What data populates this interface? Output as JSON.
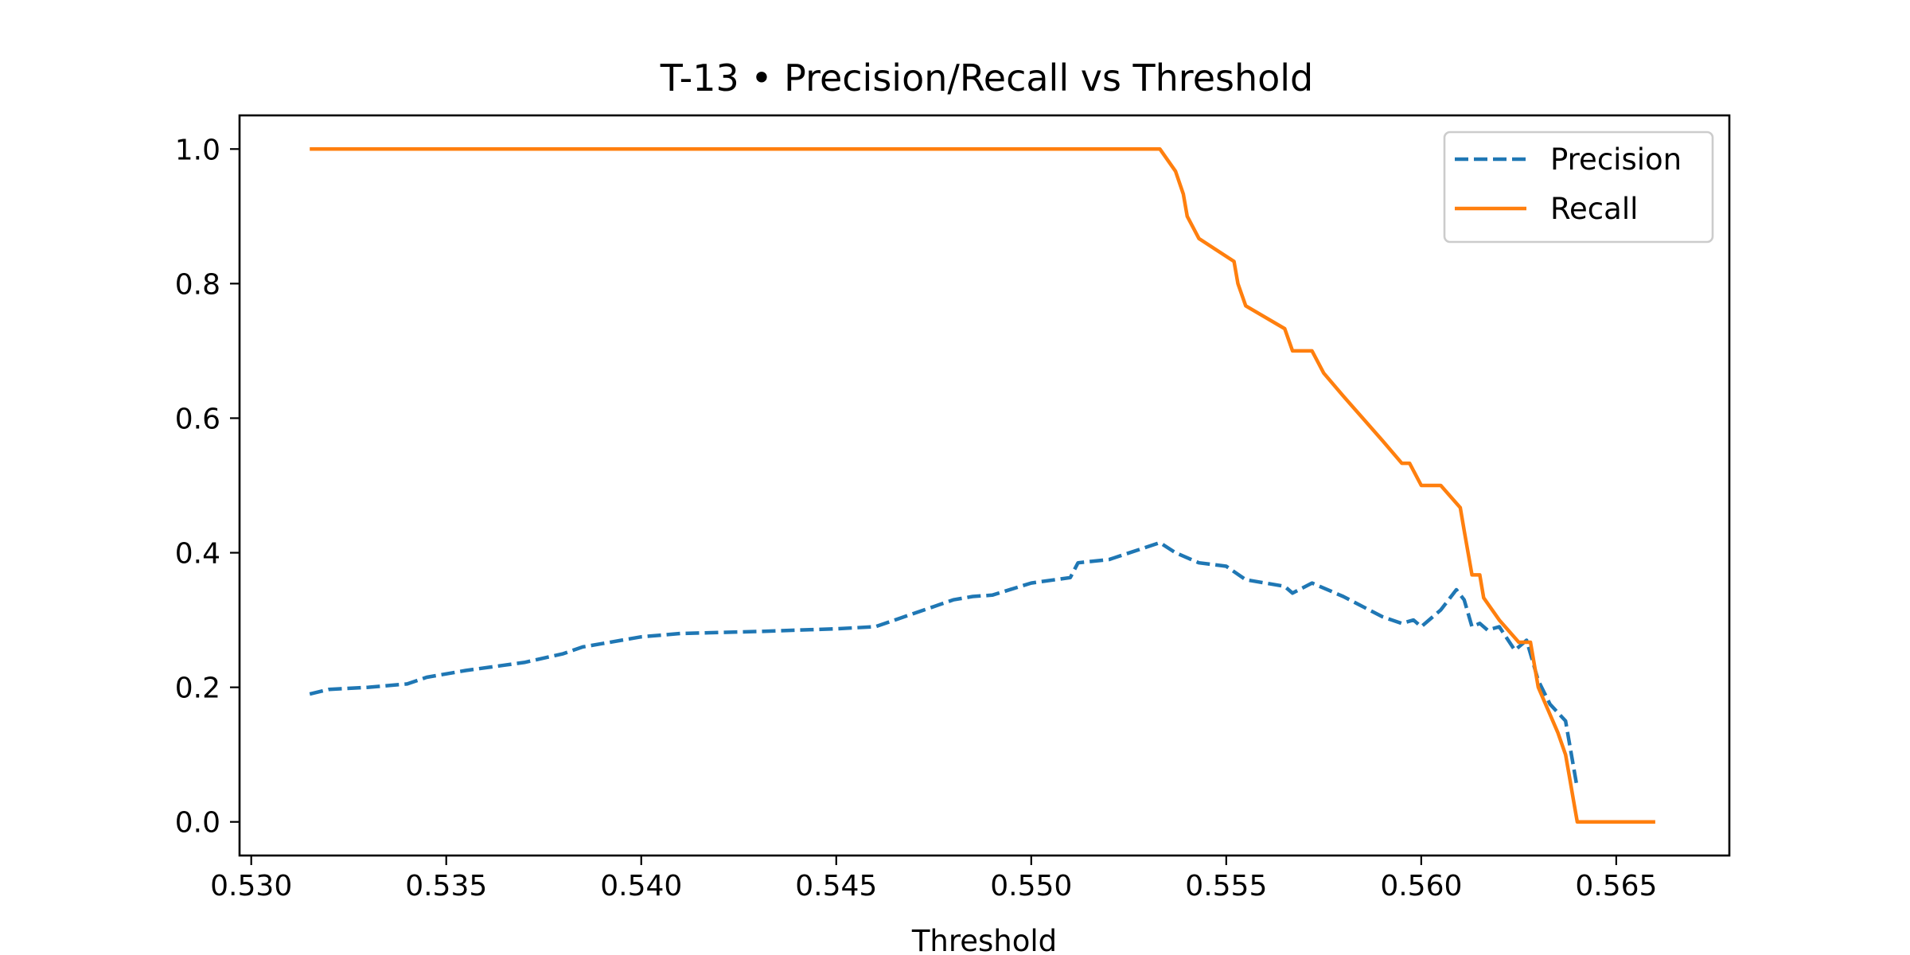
{
  "chart_data": {
    "type": "line",
    "title": "T-13 • Precision/Recall vs Threshold",
    "xlabel": "Threshold",
    "ylabel": "",
    "xlim": [
      0.5297,
      0.5679
    ],
    "ylim": [
      -0.05,
      1.05
    ],
    "xticks": [
      "0.530",
      "0.535",
      "0.540",
      "0.545",
      "0.550",
      "0.555",
      "0.560",
      "0.565"
    ],
    "xtick_values": [
      0.53,
      0.535,
      0.54,
      0.545,
      0.55,
      0.555,
      0.56,
      0.565
    ],
    "yticks": [
      "0.0",
      "0.2",
      "0.4",
      "0.6",
      "0.8",
      "1.0"
    ],
    "ytick_values": [
      0.0,
      0.2,
      0.4,
      0.6,
      0.8,
      1.0
    ],
    "grid": false,
    "legend_position": "top-right",
    "series": [
      {
        "name": "Precision",
        "color": "#1f77b4",
        "style": "dashed",
        "x": [
          0.5315,
          0.532,
          0.533,
          0.534,
          0.5345,
          0.5355,
          0.537,
          0.538,
          0.5385,
          0.539,
          0.54,
          0.541,
          0.543,
          0.545,
          0.546,
          0.5465,
          0.5475,
          0.548,
          0.5485,
          0.549,
          0.55,
          0.551,
          0.5512,
          0.552,
          0.5533,
          0.5537,
          0.5543,
          0.555,
          0.5555,
          0.5565,
          0.5567,
          0.5572,
          0.558,
          0.559,
          0.5595,
          0.5598,
          0.56,
          0.5605,
          0.5609,
          0.5611,
          0.5613,
          0.5615,
          0.5617,
          0.562,
          0.5624,
          0.5627,
          0.563,
          0.5633,
          0.5637,
          0.564
        ],
        "y": [
          0.19,
          0.197,
          0.2,
          0.205,
          0.215,
          0.225,
          0.237,
          0.25,
          0.26,
          0.265,
          0.275,
          0.28,
          0.283,
          0.287,
          0.29,
          0.3,
          0.32,
          0.33,
          0.335,
          0.337,
          0.355,
          0.363,
          0.385,
          0.39,
          0.415,
          0.4,
          0.385,
          0.38,
          0.36,
          0.35,
          0.34,
          0.355,
          0.335,
          0.305,
          0.295,
          0.3,
          0.29,
          0.315,
          0.345,
          0.33,
          0.29,
          0.295,
          0.285,
          0.29,
          0.255,
          0.27,
          0.21,
          0.175,
          0.15,
          0.05
        ]
      },
      {
        "name": "Recall",
        "color": "#ff7f0e",
        "style": "solid",
        "x": [
          0.5315,
          0.5533,
          0.5537,
          0.5539,
          0.554,
          0.5543,
          0.5552,
          0.5553,
          0.5555,
          0.5565,
          0.5567,
          0.5572,
          0.5575,
          0.558,
          0.5585,
          0.559,
          0.5595,
          0.5597,
          0.56,
          0.5605,
          0.561,
          0.5611,
          0.5612,
          0.5613,
          0.5615,
          0.5616,
          0.562,
          0.5625,
          0.5628,
          0.563,
          0.5635,
          0.5637,
          0.5638,
          0.5639,
          0.564,
          0.565,
          0.566
        ],
        "y": [
          1.0,
          1.0,
          0.967,
          0.933,
          0.9,
          0.867,
          0.833,
          0.8,
          0.767,
          0.733,
          0.7,
          0.7,
          0.667,
          0.633,
          0.6,
          0.567,
          0.533,
          0.533,
          0.5,
          0.5,
          0.467,
          0.433,
          0.4,
          0.367,
          0.367,
          0.333,
          0.3,
          0.267,
          0.267,
          0.2,
          0.133,
          0.1,
          0.067,
          0.033,
          0.0,
          0.0,
          0.0
        ]
      }
    ]
  }
}
